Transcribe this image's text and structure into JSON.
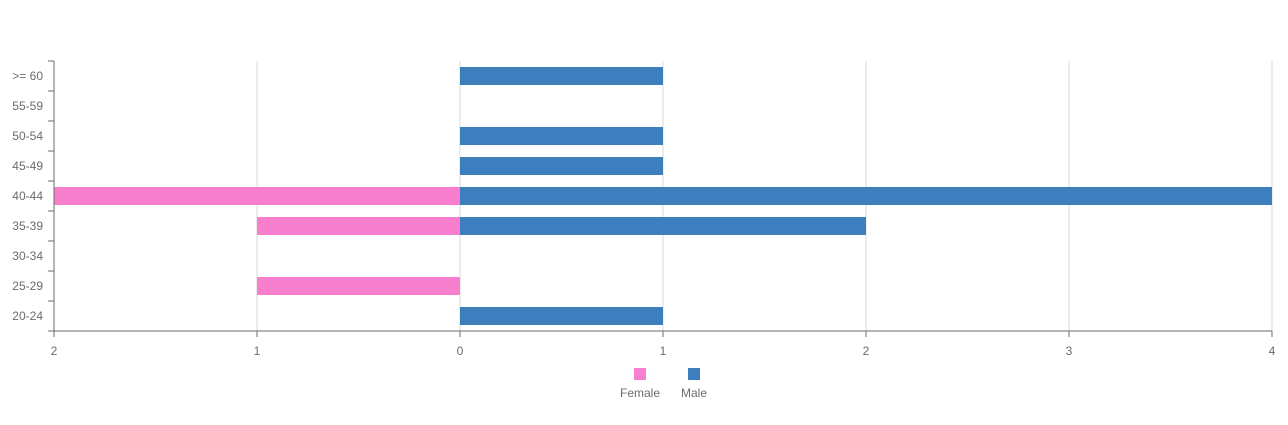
{
  "chart_data": {
    "type": "bar",
    "orientation": "horizontal",
    "diverging": true,
    "categories": [
      ">= 60",
      "55-59",
      "50-54",
      "45-49",
      "40-44",
      "35-39",
      "30-34",
      "25-29",
      "20-24"
    ],
    "series": [
      {
        "name": "Female",
        "color": "#f77fcd",
        "values": [
          0,
          0,
          0,
          0,
          2,
          1,
          0,
          1,
          0
        ]
      },
      {
        "name": "Male",
        "color": "#3d7ebf",
        "values": [
          1,
          0,
          1,
          1,
          4,
          2,
          0,
          0,
          1
        ]
      }
    ],
    "x_ticks": [
      "2",
      "1",
      "0",
      "1",
      "2",
      "3",
      "4"
    ],
    "xlim": [
      -2,
      4
    ],
    "grid": true,
    "legend_position": "bottom"
  }
}
